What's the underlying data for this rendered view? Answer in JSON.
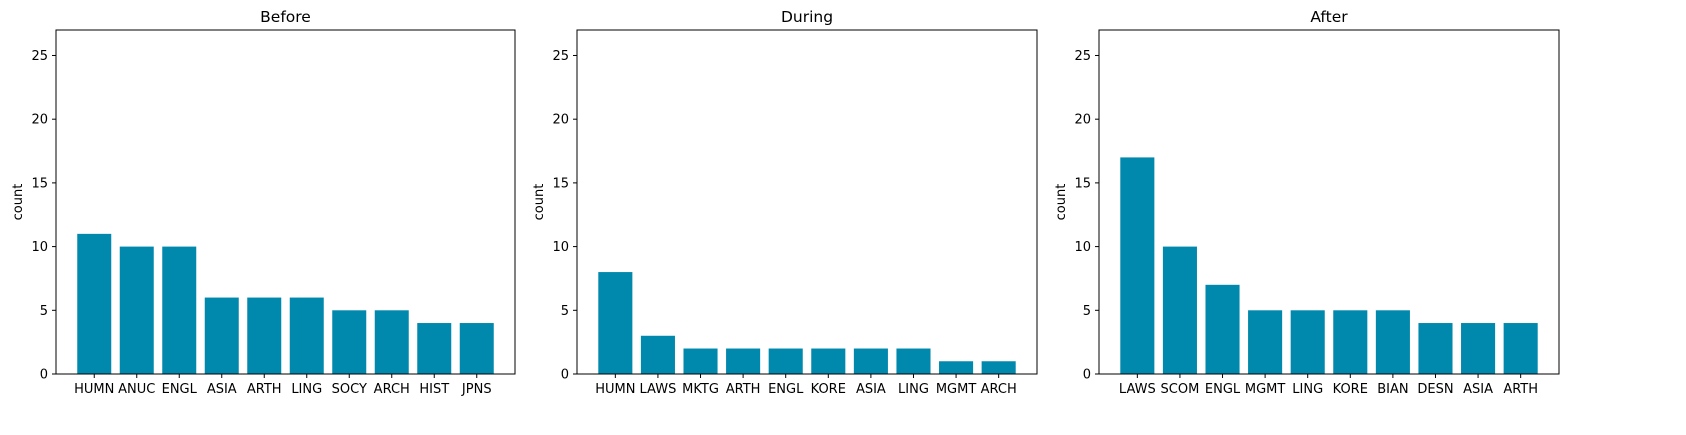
{
  "colors": {
    "bar": "#0088ad",
    "axis": "#000000",
    "background": "#ffffff"
  },
  "chart_data": [
    {
      "type": "bar",
      "title": "Before",
      "xlabel": "",
      "ylabel": "count",
      "ylim": [
        0,
        27
      ],
      "yticks": [
        0,
        5,
        10,
        15,
        20,
        25
      ],
      "grid": false,
      "categories": [
        "HUMN",
        "ANUC",
        "ENGL",
        "ASIA",
        "ARTH",
        "LING",
        "SOCY",
        "ARCH",
        "HIST",
        "JPNS"
      ],
      "values": [
        11,
        10,
        10,
        6,
        6,
        6,
        5,
        5,
        4,
        4
      ]
    },
    {
      "type": "bar",
      "title": "During",
      "xlabel": "",
      "ylabel": "count",
      "ylim": [
        0,
        27
      ],
      "yticks": [
        0,
        5,
        10,
        15,
        20,
        25
      ],
      "grid": false,
      "categories": [
        "HUMN",
        "LAWS",
        "MKTG",
        "ARTH",
        "ENGL",
        "KORE",
        "ASIA",
        "LING",
        "MGMT",
        "ARCH"
      ],
      "values": [
        8,
        3,
        2,
        2,
        2,
        2,
        2,
        2,
        1,
        1
      ]
    },
    {
      "type": "bar",
      "title": "After",
      "xlabel": "",
      "ylabel": "count",
      "ylim": [
        0,
        27
      ],
      "yticks": [
        0,
        5,
        10,
        15,
        20,
        25
      ],
      "grid": false,
      "categories": [
        "LAWS",
        "SCOM",
        "ENGL",
        "MGMT",
        "LING",
        "KORE",
        "BIAN",
        "DESN",
        "ASIA",
        "ARTH"
      ],
      "values": [
        17,
        10,
        7,
        5,
        5,
        5,
        5,
        4,
        4,
        4
      ]
    }
  ]
}
